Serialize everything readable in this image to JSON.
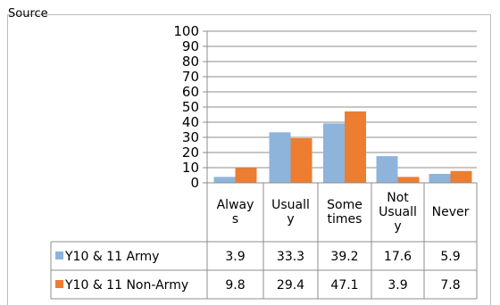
{
  "page": {
    "top_text": "Source"
  },
  "colors": {
    "army": "#8eb4dc",
    "non_army": "#ed7d31",
    "grid": "#8c8c8c"
  },
  "chart_data": {
    "type": "bar",
    "title": "",
    "xlabel": "",
    "ylabel": "",
    "ylim": [
      0,
      100
    ],
    "yticks": [
      "0",
      "10",
      "20",
      "30",
      "40",
      "50",
      "60",
      "70",
      "80",
      "90",
      "100"
    ],
    "grid": true,
    "legend": "in data table",
    "categories": [
      [
        "Alway",
        "s"
      ],
      [
        "Usuall",
        "y"
      ],
      [
        "Some",
        "times"
      ],
      [
        "Not",
        "Usuall",
        "y"
      ],
      [
        "Never"
      ]
    ],
    "series": [
      {
        "name": "Y10 & 11 Army",
        "values": [
          3.9,
          33.3,
          39.2,
          17.6,
          5.9
        ],
        "labels": [
          "3.9",
          "33.3",
          "39.2",
          "17.6",
          "5.9"
        ]
      },
      {
        "name": "Y10 & 11 Non-Army",
        "values": [
          9.8,
          29.4,
          47.1,
          3.9,
          7.8
        ],
        "labels": [
          "9.8",
          "29.4",
          "47.1",
          "3.9",
          "7.8"
        ]
      }
    ]
  }
}
